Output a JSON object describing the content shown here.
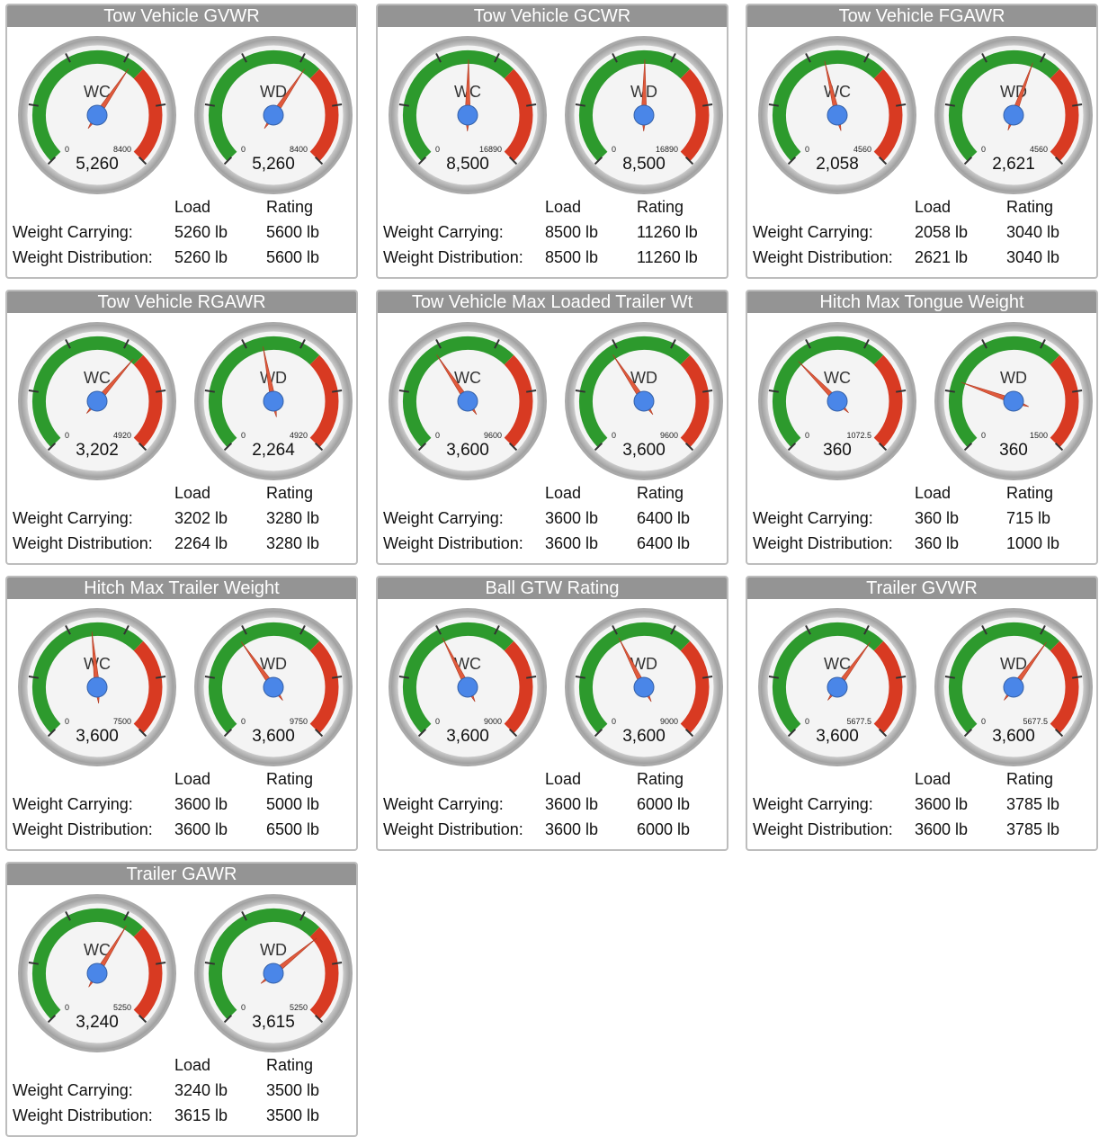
{
  "headers": {
    "load": "Load",
    "rating": "Rating"
  },
  "row_labels": {
    "wc": "Weight Carrying:",
    "wd": "Weight Distribution:"
  },
  "gauge_labels": {
    "wc": "WC",
    "wd": "WD"
  },
  "colors": {
    "green": "#2d9a2d",
    "red": "#d83a22",
    "hub": "#4a86e8",
    "needle": "#e05a3c",
    "title_bar": "#949494"
  },
  "panels": [
    {
      "title": "Tow Vehicle GVWR",
      "gauges": [
        {
          "label": "WC",
          "min": "0",
          "max": "8400",
          "max_value": 8400,
          "value": 5260,
          "display": "5,260",
          "green_to": 5600
        },
        {
          "label": "WD",
          "min": "0",
          "max": "8400",
          "max_value": 8400,
          "value": 5260,
          "display": "5,260",
          "green_to": 5600
        }
      ],
      "wc": {
        "load": "5260 lb",
        "rating": "5600 lb"
      },
      "wd": {
        "load": "5260 lb",
        "rating": "5600 lb"
      }
    },
    {
      "title": "Tow Vehicle GCWR",
      "gauges": [
        {
          "label": "WC",
          "min": "0",
          "max": "16890",
          "max_value": 16890,
          "value": 8500,
          "display": "8,500",
          "green_to": 11260
        },
        {
          "label": "WD",
          "min": "0",
          "max": "16890",
          "max_value": 16890,
          "value": 8500,
          "display": "8,500",
          "green_to": 11260
        }
      ],
      "wc": {
        "load": "8500 lb",
        "rating": "11260 lb"
      },
      "wd": {
        "load": "8500 lb",
        "rating": "11260 lb"
      }
    },
    {
      "title": "Tow Vehicle FGAWR",
      "gauges": [
        {
          "label": "WC",
          "min": "0",
          "max": "4560",
          "max_value": 4560,
          "value": 2058,
          "display": "2,058",
          "green_to": 3040
        },
        {
          "label": "WD",
          "min": "0",
          "max": "4560",
          "max_value": 4560,
          "value": 2621,
          "display": "2,621",
          "green_to": 3040
        }
      ],
      "wc": {
        "load": "2058 lb",
        "rating": "3040 lb"
      },
      "wd": {
        "load": "2621 lb",
        "rating": "3040 lb"
      }
    },
    {
      "title": "Tow Vehicle RGAWR",
      "gauges": [
        {
          "label": "WC",
          "min": "0",
          "max": "4920",
          "max_value": 4920,
          "value": 3202,
          "display": "3,202",
          "green_to": 3280
        },
        {
          "label": "WD",
          "min": "0",
          "max": "4920",
          "max_value": 4920,
          "value": 2264,
          "display": "2,264",
          "green_to": 3280
        }
      ],
      "wc": {
        "load": "3202 lb",
        "rating": "3280 lb"
      },
      "wd": {
        "load": "2264 lb",
        "rating": "3280 lb"
      }
    },
    {
      "title": "Tow Vehicle Max Loaded Trailer Wt",
      "gauges": [
        {
          "label": "WC",
          "min": "0",
          "max": "9600",
          "max_value": 9600,
          "value": 3600,
          "display": "3,600",
          "green_to": 6400
        },
        {
          "label": "WD",
          "min": "0",
          "max": "9600",
          "max_value": 9600,
          "value": 3600,
          "display": "3,600",
          "green_to": 6400
        }
      ],
      "wc": {
        "load": "3600 lb",
        "rating": "6400 lb"
      },
      "wd": {
        "load": "3600 lb",
        "rating": "6400 lb"
      }
    },
    {
      "title": "Hitch Max Tongue Weight",
      "gauges": [
        {
          "label": "WC",
          "min": "0",
          "max": "1072.5",
          "max_value": 1072.5,
          "value": 360,
          "display": "360",
          "green_to": 715
        },
        {
          "label": "WD",
          "min": "0",
          "max": "1500",
          "max_value": 1500,
          "value": 360,
          "display": "360",
          "green_to": 1000
        }
      ],
      "wc": {
        "load": "360 lb",
        "rating": "715 lb"
      },
      "wd": {
        "load": "360 lb",
        "rating": "1000 lb"
      }
    },
    {
      "title": "Hitch Max Trailer Weight",
      "gauges": [
        {
          "label": "WC",
          "min": "0",
          "max": "7500",
          "max_value": 7500,
          "value": 3600,
          "display": "3,600",
          "green_to": 5000
        },
        {
          "label": "WD",
          "min": "0",
          "max": "9750",
          "max_value": 9750,
          "value": 3600,
          "display": "3,600",
          "green_to": 6500
        }
      ],
      "wc": {
        "load": "3600 lb",
        "rating": "5000 lb"
      },
      "wd": {
        "load": "3600 lb",
        "rating": "6500 lb"
      }
    },
    {
      "title": "Ball GTW Rating",
      "gauges": [
        {
          "label": "WC",
          "min": "0",
          "max": "9000",
          "max_value": 9000,
          "value": 3600,
          "display": "3,600",
          "green_to": 6000
        },
        {
          "label": "WD",
          "min": "0",
          "max": "9000",
          "max_value": 9000,
          "value": 3600,
          "display": "3,600",
          "green_to": 6000
        }
      ],
      "wc": {
        "load": "3600 lb",
        "rating": "6000 lb"
      },
      "wd": {
        "load": "3600 lb",
        "rating": "6000 lb"
      }
    },
    {
      "title": "Trailer GVWR",
      "gauges": [
        {
          "label": "WC",
          "min": "0",
          "max": "5677.5",
          "max_value": 5677.5,
          "value": 3600,
          "display": "3,600",
          "green_to": 3785
        },
        {
          "label": "WD",
          "min": "0",
          "max": "5677.5",
          "max_value": 5677.5,
          "value": 3600,
          "display": "3,600",
          "green_to": 3785
        }
      ],
      "wc": {
        "load": "3600 lb",
        "rating": "3785 lb"
      },
      "wd": {
        "load": "3600 lb",
        "rating": "3785 lb"
      }
    },
    {
      "title": "Trailer GAWR",
      "gauges": [
        {
          "label": "WC",
          "min": "0",
          "max": "5250",
          "max_value": 5250,
          "value": 3240,
          "display": "3,240",
          "green_to": 3500
        },
        {
          "label": "WD",
          "min": "0",
          "max": "5250",
          "max_value": 5250,
          "value": 3615,
          "display": "3,615",
          "green_to": 3500
        }
      ],
      "wc": {
        "load": "3240 lb",
        "rating": "3500 lb"
      },
      "wd": {
        "load": "3615 lb",
        "rating": "3500 lb"
      }
    }
  ]
}
